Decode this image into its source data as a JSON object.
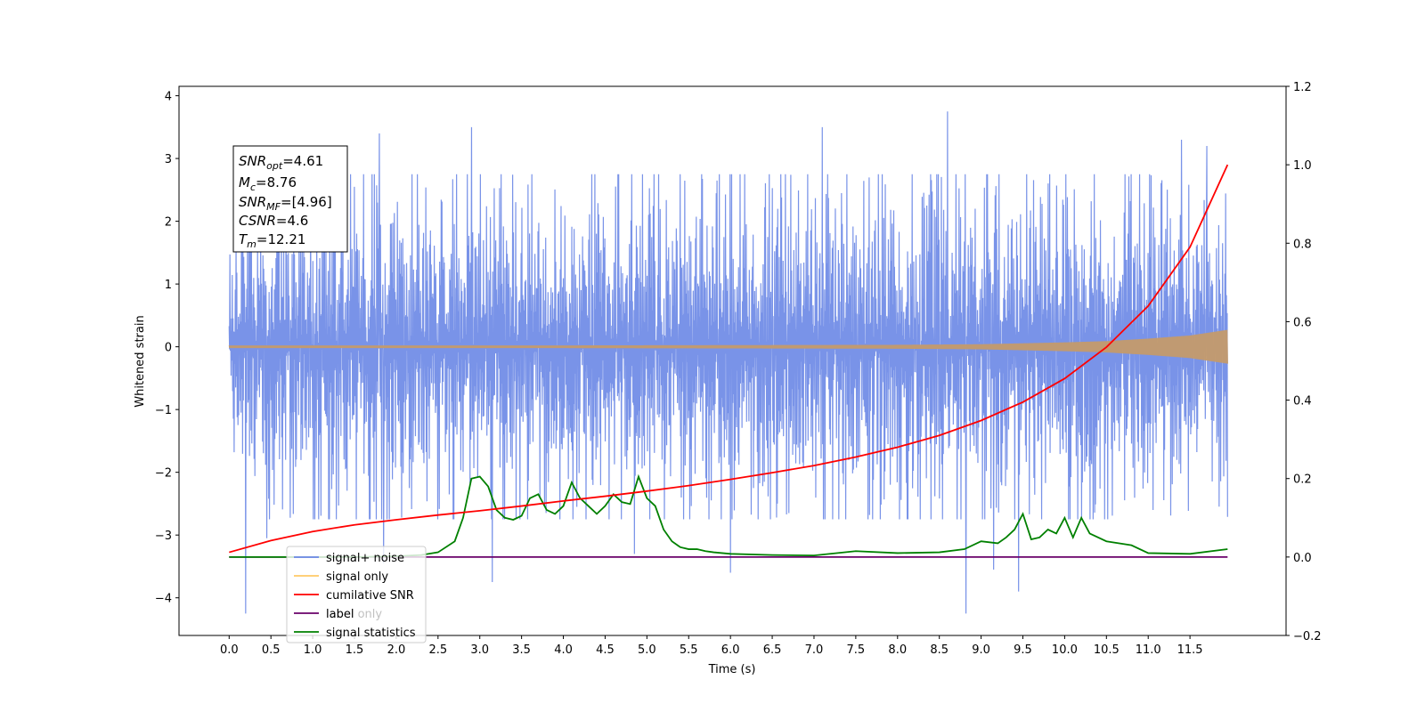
{
  "chart_data": {
    "type": "line",
    "xlabel": "Time (s)",
    "ylabel_left": "Whitened strain",
    "ylabel_right": "",
    "x_range": [
      -0.6,
      12.65
    ],
    "y_left_range": [
      -4.6,
      4.15
    ],
    "y_right_range": [
      -0.2,
      1.2
    ],
    "x_ticks": [
      0.0,
      0.5,
      1.0,
      1.5,
      2.0,
      2.5,
      3.0,
      3.5,
      4.0,
      4.5,
      5.0,
      5.5,
      6.0,
      6.5,
      7.0,
      7.5,
      8.0,
      8.5,
      9.0,
      9.5,
      10.0,
      10.5,
      11.0,
      11.5
    ],
    "x_tick_labels": [
      "0.0",
      "0.5",
      "1.0",
      "1.5",
      "2.0",
      "2.5",
      "3.0",
      "3.5",
      "4.0",
      "4.5",
      "5.0",
      "5.5",
      "6.0",
      "6.5",
      "7.0",
      "7.5",
      "8.0",
      "8.5",
      "9.0",
      "9.5",
      "10.0",
      "10.5",
      "11.0",
      "11.5"
    ],
    "y_left_ticks": [
      -4,
      -3,
      -2,
      -1,
      0,
      1,
      2,
      3,
      4
    ],
    "y_left_tick_labels": [
      "−4",
      "−3",
      "−2",
      "−1",
      "0",
      "1",
      "2",
      "3",
      "4"
    ],
    "y_right_ticks": [
      -0.2,
      0.0,
      0.2,
      0.4,
      0.6,
      0.8,
      1.0,
      1.2
    ],
    "y_right_tick_labels": [
      "−0.2",
      "0.0",
      "0.2",
      "0.4",
      "0.6",
      "0.8",
      "1.0",
      "1.2"
    ],
    "grid": false,
    "legend_position": "lower-left",
    "series": [
      {
        "name": "signal+ noise",
        "axis": "left",
        "color": "#6a87e6",
        "kind": "noise",
        "envelope": {
          "x": [
            0,
            2,
            4,
            6,
            8,
            10,
            11.95
          ],
          "amplitude": [
            1.55,
            1.6,
            1.6,
            1.6,
            1.6,
            1.6,
            1.5
          ]
        },
        "spikes": [
          {
            "x": 0.2,
            "y": -4.25
          },
          {
            "x": 0.45,
            "y": -3.05
          },
          {
            "x": 1.5,
            "y": 2.55
          },
          {
            "x": 1.8,
            "y": 3.4
          },
          {
            "x": 1.85,
            "y": -3.45
          },
          {
            "x": 2.9,
            "y": 3.5
          },
          {
            "x": 3.15,
            "y": -3.75
          },
          {
            "x": 4.85,
            "y": -3.3
          },
          {
            "x": 6.0,
            "y": -3.6
          },
          {
            "x": 7.1,
            "y": 3.5
          },
          {
            "x": 8.6,
            "y": 3.75
          },
          {
            "x": 8.82,
            "y": -4.25
          },
          {
            "x": 9.15,
            "y": -3.55
          },
          {
            "x": 9.45,
            "y": -3.9
          },
          {
            "x": 11.4,
            "y": 3.3
          },
          {
            "x": 11.7,
            "y": 3.2
          }
        ]
      },
      {
        "name": "signal only",
        "axis": "left",
        "color": "#c49a6c",
        "kind": "chirp",
        "envelope": {
          "x": [
            0,
            4,
            8,
            9,
            10,
            10.5,
            11,
            11.5,
            11.95
          ],
          "amplitude": [
            0.02,
            0.02,
            0.03,
            0.04,
            0.07,
            0.09,
            0.13,
            0.18,
            0.27
          ]
        }
      },
      {
        "name": "cumilative SNR",
        "axis": "right",
        "color": "#ff0000",
        "x": [
          0,
          0.5,
          1,
          1.5,
          2,
          2.5,
          3,
          3.5,
          4,
          4.5,
          5,
          5.5,
          6,
          6.5,
          7,
          7.5,
          8,
          8.5,
          9,
          9.5,
          10,
          10.5,
          11,
          11.5,
          11.95
        ],
        "y": [
          0.012,
          0.042,
          0.065,
          0.082,
          0.095,
          0.107,
          0.118,
          0.13,
          0.143,
          0.155,
          0.168,
          0.182,
          0.198,
          0.215,
          0.233,
          0.255,
          0.28,
          0.31,
          0.348,
          0.395,
          0.455,
          0.535,
          0.64,
          0.79,
          1.0
        ]
      },
      {
        "name": "label only",
        "axis": "right",
        "color": "#6a006a",
        "x": [
          0,
          11.95
        ],
        "y": [
          0.0,
          0.0
        ]
      },
      {
        "name": "signal statistics",
        "axis": "right",
        "color": "#008000",
        "x": [
          0,
          0.5,
          1,
          1.5,
          2,
          2.3,
          2.5,
          2.7,
          2.8,
          2.9,
          3.0,
          3.1,
          3.2,
          3.3,
          3.4,
          3.5,
          3.6,
          3.7,
          3.8,
          3.9,
          4.0,
          4.1,
          4.2,
          4.3,
          4.4,
          4.5,
          4.6,
          4.7,
          4.8,
          4.9,
          5.0,
          5.1,
          5.2,
          5.3,
          5.4,
          5.5,
          5.6,
          5.7,
          5.8,
          6.0,
          6.5,
          7.0,
          7.5,
          8.0,
          8.5,
          8.8,
          9.0,
          9.2,
          9.3,
          9.4,
          9.5,
          9.6,
          9.7,
          9.8,
          9.9,
          10.0,
          10.1,
          10.2,
          10.3,
          10.5,
          10.8,
          11.0,
          11.5,
          11.95
        ],
        "y": [
          0.0,
          0.0,
          0.0,
          0.0,
          0.002,
          0.005,
          0.012,
          0.04,
          0.1,
          0.2,
          0.205,
          0.18,
          0.12,
          0.1,
          0.095,
          0.105,
          0.15,
          0.16,
          0.12,
          0.11,
          0.13,
          0.19,
          0.15,
          0.13,
          0.11,
          0.13,
          0.16,
          0.14,
          0.135,
          0.205,
          0.15,
          0.13,
          0.07,
          0.04,
          0.025,
          0.02,
          0.02,
          0.015,
          0.012,
          0.008,
          0.005,
          0.004,
          0.015,
          0.01,
          0.012,
          0.02,
          0.04,
          0.035,
          0.05,
          0.07,
          0.11,
          0.045,
          0.05,
          0.07,
          0.06,
          0.1,
          0.05,
          0.1,
          0.06,
          0.04,
          0.03,
          0.01,
          0.008,
          0.02
        ]
      }
    ],
    "legend": [
      "signal+ noise",
      "signal only",
      "cumilative SNR",
      "label",
      "label only",
      "signal statistics"
    ],
    "annotation": [
      {
        "base": "SNR",
        "sub": "opt",
        "rest": "=4.61"
      },
      {
        "base": "M",
        "sub": "c",
        "rest": "=8.76"
      },
      {
        "base": "SNR",
        "sub": "MF",
        "rest": "=[4.96]"
      },
      {
        "base": "CSNR",
        "sub": "",
        "rest": "=4.6"
      },
      {
        "base": "T",
        "sub": "m",
        "rest": "=12.21"
      }
    ]
  }
}
